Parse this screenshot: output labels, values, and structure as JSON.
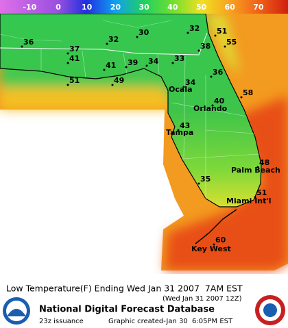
{
  "legend": {
    "ticks": [
      -10,
      0,
      10,
      20,
      30,
      40,
      50,
      60,
      70
    ]
  },
  "points": [
    {
      "value": 36
    },
    {
      "value": 32
    },
    {
      "value": 30
    },
    {
      "value": 32
    },
    {
      "value": 51
    },
    {
      "value": 55
    },
    {
      "value": 37
    },
    {
      "value": 41
    },
    {
      "value": 41
    },
    {
      "value": 39
    },
    {
      "value": 34
    },
    {
      "value": 33
    },
    {
      "value": 38
    },
    {
      "value": 36
    },
    {
      "value": 34
    },
    {
      "value": 58
    },
    {
      "value": 51
    },
    {
      "value": 49
    },
    {
      "value": 40
    },
    {
      "value": 43
    },
    {
      "value": 48
    },
    {
      "value": 35
    },
    {
      "value": 51
    },
    {
      "value": 60
    }
  ],
  "cities": [
    "Ocala",
    "Orlando",
    "Tampa",
    "Palm Beach",
    "Miami Int'l",
    "Key West"
  ],
  "caption": {
    "title": "Low Temperature(F) Ending Wed Jan 31 2007  7AM EST",
    "subtitle": "(Wed Jan 31 2007 12Z)",
    "source": "National Digital Forecast Database",
    "issuance": "23z issuance",
    "created": "Graphic created-Jan 30  6:05PM EST"
  }
}
